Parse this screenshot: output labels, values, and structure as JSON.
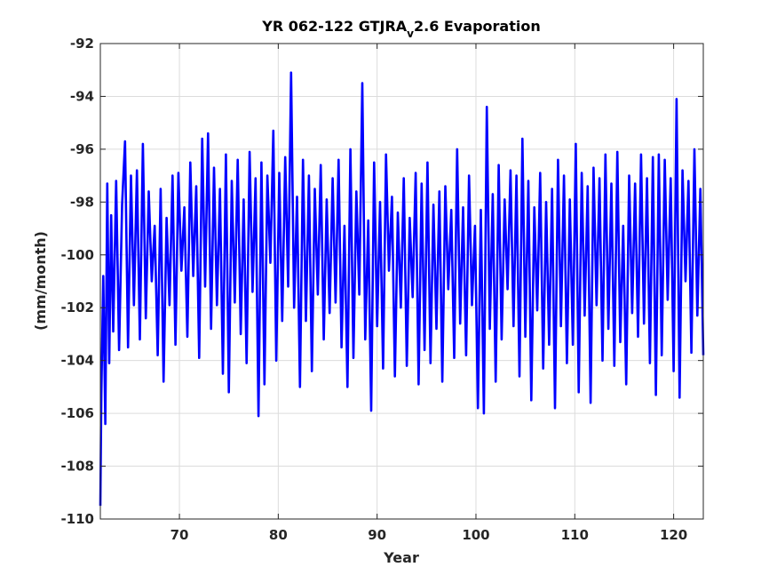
{
  "chart_data": {
    "type": "line",
    "title": "YR 062-122 GTJRA",
    "title_subscript": "v",
    "title_suffix": "2.6 Evaporation",
    "xlabel": "Year",
    "ylabel": "(mm/month)",
    "xlim": [
      62,
      123
    ],
    "ylim": [
      -110,
      -92
    ],
    "xticks": [
      70,
      80,
      90,
      100,
      110,
      120
    ],
    "yticks": [
      -110,
      -108,
      -106,
      -104,
      -102,
      -100,
      -98,
      -96,
      -94,
      -92
    ],
    "grid": true,
    "series": [
      {
        "color": "#0000ff",
        "x": [
          62,
          62.1,
          62.3,
          62.5,
          62.7,
          62.9,
          63.1,
          63.3,
          63.6,
          63.9,
          64.2,
          64.5,
          64.8,
          65.1,
          65.4,
          65.7,
          66.0,
          66.3,
          66.6,
          66.9,
          67.2,
          67.5,
          67.8,
          68.1,
          68.4,
          68.7,
          69.0,
          69.3,
          69.6,
          69.9,
          70.2,
          70.5,
          70.8,
          71.1,
          71.4,
          71.7,
          72.0,
          72.3,
          72.6,
          72.9,
          73.2,
          73.5,
          73.8,
          74.1,
          74.4,
          74.7,
          75.0,
          75.3,
          75.6,
          75.9,
          76.2,
          76.5,
          76.8,
          77.1,
          77.4,
          77.7,
          78.0,
          78.3,
          78.6,
          78.9,
          79.2,
          79.5,
          79.8,
          80.1,
          80.4,
          80.7,
          81.0,
          81.3,
          81.6,
          81.9,
          82.2,
          82.5,
          82.8,
          83.1,
          83.4,
          83.7,
          84.0,
          84.3,
          84.6,
          84.9,
          85.2,
          85.5,
          85.8,
          86.1,
          86.4,
          86.7,
          87.0,
          87.3,
          87.6,
          87.9,
          88.2,
          88.5,
          88.8,
          89.1,
          89.4,
          89.7,
          90.0,
          90.3,
          90.6,
          90.9,
          91.2,
          91.5,
          91.8,
          92.1,
          92.4,
          92.7,
          93.0,
          93.3,
          93.6,
          93.9,
          94.2,
          94.5,
          94.8,
          95.1,
          95.4,
          95.7,
          96.0,
          96.3,
          96.6,
          96.9,
          97.2,
          97.5,
          97.8,
          98.1,
          98.4,
          98.7,
          99.0,
          99.3,
          99.6,
          99.9,
          100.2,
          100.5,
          100.8,
          101.1,
          101.4,
          101.7,
          102.0,
          102.3,
          102.6,
          102.9,
          103.2,
          103.5,
          103.8,
          104.1,
          104.4,
          104.7,
          105.0,
          105.3,
          105.6,
          105.9,
          106.2,
          106.5,
          106.8,
          107.1,
          107.4,
          107.7,
          108.0,
          108.3,
          108.6,
          108.9,
          109.2,
          109.5,
          109.8,
          110.1,
          110.4,
          110.7,
          111.0,
          111.3,
          111.6,
          111.9,
          112.2,
          112.5,
          112.8,
          113.1,
          113.4,
          113.7,
          114.0,
          114.3,
          114.6,
          114.9,
          115.2,
          115.5,
          115.8,
          116.1,
          116.4,
          116.7,
          117.0,
          117.3,
          117.6,
          117.9,
          118.2,
          118.5,
          118.8,
          119.1,
          119.4,
          119.7,
          120.0,
          120.3,
          120.6,
          120.9,
          121.2,
          121.5,
          121.8,
          122.1,
          122.4,
          122.7,
          123.0
        ],
        "y": [
          -109.5,
          -105.3,
          -100.8,
          -106.4,
          -97.3,
          -104.1,
          -98.5,
          -102.9,
          -97.2,
          -103.6,
          -98.1,
          -95.7,
          -103.5,
          -97.0,
          -101.9,
          -96.8,
          -103.2,
          -95.8,
          -102.4,
          -97.6,
          -101.0,
          -98.9,
          -103.8,
          -97.5,
          -104.8,
          -98.6,
          -101.9,
          -97.0,
          -103.4,
          -96.9,
          -100.6,
          -98.2,
          -103.1,
          -96.5,
          -100.8,
          -97.4,
          -103.9,
          -95.6,
          -101.2,
          -95.4,
          -102.8,
          -96.7,
          -101.9,
          -97.5,
          -104.5,
          -96.2,
          -105.2,
          -97.2,
          -101.8,
          -96.4,
          -103.0,
          -97.9,
          -104.1,
          -96.1,
          -101.4,
          -97.1,
          -106.1,
          -96.5,
          -104.9,
          -97.0,
          -100.3,
          -95.3,
          -104.0,
          -96.9,
          -102.5,
          -96.3,
          -101.2,
          -93.1,
          -102.0,
          -97.8,
          -105.0,
          -96.4,
          -102.5,
          -97.0,
          -104.4,
          -97.5,
          -101.5,
          -96.6,
          -103.2,
          -97.9,
          -102.2,
          -97.1,
          -101.8,
          -96.4,
          -103.5,
          -98.9,
          -105.0,
          -96.0,
          -103.9,
          -97.6,
          -101.5,
          -93.5,
          -103.2,
          -98.7,
          -105.9,
          -96.5,
          -102.7,
          -98.0,
          -104.3,
          -96.2,
          -100.6,
          -97.8,
          -104.6,
          -98.4,
          -102.0,
          -97.1,
          -104.2,
          -98.6,
          -101.6,
          -96.9,
          -104.9,
          -97.3,
          -103.6,
          -96.5,
          -104.1,
          -98.1,
          -102.8,
          -97.6,
          -104.8,
          -97.4,
          -101.3,
          -98.3,
          -103.9,
          -96.0,
          -102.6,
          -98.2,
          -103.8,
          -97.0,
          -101.9,
          -98.9,
          -105.8,
          -98.3,
          -106.0,
          -94.4,
          -102.8,
          -97.7,
          -104.8,
          -96.6,
          -103.2,
          -97.9,
          -101.3,
          -96.8,
          -102.7,
          -97.0,
          -104.6,
          -95.6,
          -103.1,
          -97.2,
          -105.5,
          -98.2,
          -102.1,
          -96.9,
          -104.3,
          -98.0,
          -103.4,
          -97.5,
          -105.8,
          -96.4,
          -102.7,
          -97.0,
          -104.1,
          -97.9,
          -103.4,
          -95.8,
          -105.2,
          -96.9,
          -102.3,
          -97.4,
          -105.6,
          -96.7,
          -101.9,
          -97.1,
          -104.0,
          -96.2,
          -102.8,
          -97.3,
          -104.2,
          -96.1,
          -103.3,
          -98.9,
          -104.9,
          -97.0,
          -102.2,
          -97.3,
          -103.1,
          -96.2,
          -102.6,
          -97.1,
          -104.1,
          -96.3,
          -105.3,
          -96.2,
          -103.8,
          -96.4,
          -101.7,
          -97.1,
          -104.4,
          -94.1,
          -105.4,
          -96.8,
          -101.0,
          -97.2,
          -103.7,
          -96.0,
          -102.3,
          -97.5,
          -103.8
        ]
      }
    ]
  }
}
